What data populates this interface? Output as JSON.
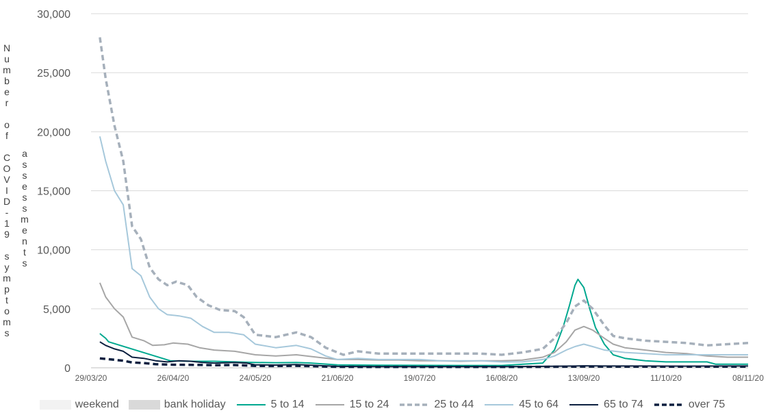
{
  "chart_data": {
    "type": "line",
    "title": "",
    "ylabel_outer": "Number of COVID-19 symptoms",
    "ylabel_inner": "assessments",
    "ylim": [
      0,
      30000
    ],
    "y_ticks": [
      "0",
      "5,000",
      "10,000",
      "15,000",
      "20,000",
      "25,000",
      "30,000"
    ],
    "y_tick_values": [
      0,
      5000,
      10000,
      15000,
      20000,
      25000,
      30000
    ],
    "x_tick_labels": [
      "29/03/20",
      "26/04/20",
      "24/05/20",
      "21/06/20",
      "19/07/20",
      "16/08/20",
      "13/09/20",
      "11/10/20",
      "08/11/20"
    ],
    "x_range": [
      "29/03/20",
      "08/11/20"
    ],
    "grid": "horizontal",
    "legend_position": "bottom",
    "shaded_categories": [
      {
        "name": "weekend",
        "color": "#f2f2f2"
      },
      {
        "name": "bank holiday",
        "color": "#d9d9d9"
      }
    ],
    "series": [
      {
        "name": "5 to 14",
        "color": "#00a88f",
        "dash": "solid",
        "width": 2,
        "points": [
          [
            "01/04/20",
            2900
          ],
          [
            "02/04/20",
            2700
          ],
          [
            "03/04/20",
            2500
          ],
          [
            "04/04/20",
            2200
          ],
          [
            "25/04/20",
            600
          ],
          [
            "03/05/20",
            550
          ],
          [
            "10/05/20",
            550
          ],
          [
            "17/05/20",
            500
          ],
          [
            "24/05/20",
            450
          ],
          [
            "31/05/20",
            430
          ],
          [
            "07/06/20",
            450
          ],
          [
            "12/06/20",
            400
          ],
          [
            "21/06/20",
            250
          ],
          [
            "05/07/20",
            220
          ],
          [
            "19/07/20",
            210
          ],
          [
            "02/08/20",
            200
          ],
          [
            "16/08/20",
            200
          ],
          [
            "30/08/20",
            400
          ],
          [
            "03/09/20",
            1500
          ],
          [
            "06/09/20",
            3500
          ],
          [
            "08/09/20",
            5200
          ],
          [
            "10/09/20",
            7000
          ],
          [
            "11/09/20",
            7500
          ],
          [
            "13/09/20",
            6800
          ],
          [
            "15/09/20",
            5000
          ],
          [
            "17/09/20",
            3400
          ],
          [
            "20/09/20",
            2000
          ],
          [
            "23/09/20",
            1100
          ],
          [
            "27/09/20",
            800
          ],
          [
            "04/10/20",
            600
          ],
          [
            "11/10/20",
            500
          ],
          [
            "18/10/20",
            500
          ],
          [
            "25/10/20",
            500
          ],
          [
            "28/10/20",
            300
          ],
          [
            "08/11/20",
            300
          ]
        ]
      },
      {
        "name": "15 to 24",
        "color": "#a6a6a6",
        "dash": "solid",
        "width": 2,
        "points": [
          [
            "01/04/20",
            7200
          ],
          [
            "03/04/20",
            6000
          ],
          [
            "06/04/20",
            5000
          ],
          [
            "09/04/20",
            4300
          ],
          [
            "12/04/20",
            2600
          ],
          [
            "16/04/20",
            2300
          ],
          [
            "19/04/20",
            1900
          ],
          [
            "23/04/20",
            1950
          ],
          [
            "26/04/20",
            2100
          ],
          [
            "01/05/20",
            2000
          ],
          [
            "05/05/20",
            1700
          ],
          [
            "10/05/20",
            1500
          ],
          [
            "17/05/20",
            1400
          ],
          [
            "24/05/20",
            1100
          ],
          [
            "31/05/20",
            1000
          ],
          [
            "07/06/20",
            1100
          ],
          [
            "14/06/20",
            900
          ],
          [
            "21/06/20",
            700
          ],
          [
            "28/06/20",
            700
          ],
          [
            "05/07/20",
            650
          ],
          [
            "12/07/20",
            650
          ],
          [
            "19/07/20",
            600
          ],
          [
            "26/07/20",
            600
          ],
          [
            "02/08/20",
            550
          ],
          [
            "09/08/20",
            600
          ],
          [
            "16/08/20",
            600
          ],
          [
            "23/08/20",
            650
          ],
          [
            "30/08/20",
            900
          ],
          [
            "03/09/20",
            1300
          ],
          [
            "07/09/20",
            2200
          ],
          [
            "10/09/20",
            3200
          ],
          [
            "13/09/20",
            3500
          ],
          [
            "16/09/20",
            3200
          ],
          [
            "20/09/20",
            2500
          ],
          [
            "23/09/20",
            2000
          ],
          [
            "27/09/20",
            1700
          ],
          [
            "04/10/20",
            1500
          ],
          [
            "11/10/20",
            1300
          ],
          [
            "18/10/20",
            1200
          ],
          [
            "25/10/20",
            1000
          ],
          [
            "01/11/20",
            900
          ],
          [
            "08/11/20",
            900
          ]
        ]
      },
      {
        "name": "25 to 44",
        "color": "#a6b0bb",
        "dash": "dashed",
        "width": 3.5,
        "points": [
          [
            "01/04/20",
            28000
          ],
          [
            "03/04/20",
            24500
          ],
          [
            "06/04/20",
            20500
          ],
          [
            "09/04/20",
            17500
          ],
          [
            "12/04/20",
            12000
          ],
          [
            "15/04/20",
            10900
          ],
          [
            "18/04/20",
            8500
          ],
          [
            "21/04/20",
            7500
          ],
          [
            "24/04/20",
            7000
          ],
          [
            "27/04/20",
            7300
          ],
          [
            "01/05/20",
            7000
          ],
          [
            "04/05/20",
            6000
          ],
          [
            "08/05/20",
            5300
          ],
          [
            "12/05/20",
            4900
          ],
          [
            "17/05/20",
            4800
          ],
          [
            "20/05/20",
            4300
          ],
          [
            "24/05/20",
            2800
          ],
          [
            "31/05/20",
            2600
          ],
          [
            "07/06/20",
            3000
          ],
          [
            "12/06/20",
            2600
          ],
          [
            "17/06/20",
            1700
          ],
          [
            "23/06/20",
            1100
          ],
          [
            "28/06/20",
            1400
          ],
          [
            "05/07/20",
            1200
          ],
          [
            "12/07/20",
            1200
          ],
          [
            "19/07/20",
            1200
          ],
          [
            "26/07/20",
            1200
          ],
          [
            "02/08/20",
            1200
          ],
          [
            "09/08/20",
            1200
          ],
          [
            "16/08/20",
            1100
          ],
          [
            "23/08/20",
            1300
          ],
          [
            "30/08/20",
            1600
          ],
          [
            "03/09/20",
            2500
          ],
          [
            "07/09/20",
            3800
          ],
          [
            "10/09/20",
            5200
          ],
          [
            "13/09/20",
            5700
          ],
          [
            "16/09/20",
            5000
          ],
          [
            "20/09/20",
            3600
          ],
          [
            "23/09/20",
            2700
          ],
          [
            "27/09/20",
            2500
          ],
          [
            "04/10/20",
            2300
          ],
          [
            "11/10/20",
            2200
          ],
          [
            "18/10/20",
            2100
          ],
          [
            "25/10/20",
            1900
          ],
          [
            "01/11/20",
            2000
          ],
          [
            "08/11/20",
            2100
          ]
        ]
      },
      {
        "name": "45 to 64",
        "color": "#a6c8db",
        "dash": "solid",
        "width": 2,
        "points": [
          [
            "01/04/20",
            19600
          ],
          [
            "03/04/20",
            17500
          ],
          [
            "06/04/20",
            15000
          ],
          [
            "09/04/20",
            13800
          ],
          [
            "12/04/20",
            8400
          ],
          [
            "15/04/20",
            7800
          ],
          [
            "18/04/20",
            6000
          ],
          [
            "21/04/20",
            5000
          ],
          [
            "24/04/20",
            4500
          ],
          [
            "28/04/20",
            4400
          ],
          [
            "02/05/20",
            4200
          ],
          [
            "06/05/20",
            3500
          ],
          [
            "10/05/20",
            3000
          ],
          [
            "15/05/20",
            3000
          ],
          [
            "20/05/20",
            2800
          ],
          [
            "24/05/20",
            2000
          ],
          [
            "31/05/20",
            1700
          ],
          [
            "07/06/20",
            1900
          ],
          [
            "12/06/20",
            1600
          ],
          [
            "17/06/20",
            1000
          ],
          [
            "21/06/20",
            700
          ],
          [
            "28/06/20",
            800
          ],
          [
            "05/07/20",
            700
          ],
          [
            "12/07/20",
            700
          ],
          [
            "19/07/20",
            700
          ],
          [
            "26/07/20",
            600
          ],
          [
            "02/08/20",
            600
          ],
          [
            "09/08/20",
            600
          ],
          [
            "16/08/20",
            500
          ],
          [
            "23/08/20",
            500
          ],
          [
            "30/08/20",
            700
          ],
          [
            "03/09/20",
            1000
          ],
          [
            "07/09/20",
            1500
          ],
          [
            "10/09/20",
            1800
          ],
          [
            "13/09/20",
            2000
          ],
          [
            "16/09/20",
            1800
          ],
          [
            "20/09/20",
            1500
          ],
          [
            "27/09/20",
            1300
          ],
          [
            "04/10/20",
            1200
          ],
          [
            "11/10/20",
            1100
          ],
          [
            "18/10/20",
            1100
          ],
          [
            "25/10/20",
            1100
          ],
          [
            "01/11/20",
            1100
          ],
          [
            "08/11/20",
            1100
          ]
        ]
      },
      {
        "name": "65 to 74",
        "color": "#0b1f3f",
        "dash": "solid",
        "width": 2,
        "points": [
          [
            "01/04/20",
            2200
          ],
          [
            "03/04/20",
            1900
          ],
          [
            "06/04/20",
            1600
          ],
          [
            "09/04/20",
            1400
          ],
          [
            "12/04/20",
            900
          ],
          [
            "16/04/20",
            800
          ],
          [
            "20/04/20",
            600
          ],
          [
            "24/04/20",
            500
          ],
          [
            "28/04/20",
            600
          ],
          [
            "02/05/20",
            550
          ],
          [
            "06/05/20",
            450
          ],
          [
            "10/05/20",
            400
          ],
          [
            "17/05/20",
            450
          ],
          [
            "21/05/20",
            400
          ],
          [
            "24/05/20",
            250
          ],
          [
            "31/05/20",
            230
          ],
          [
            "07/06/20",
            280
          ],
          [
            "14/06/20",
            200
          ],
          [
            "21/06/20",
            120
          ],
          [
            "05/07/20",
            100
          ],
          [
            "19/07/20",
            100
          ],
          [
            "02/08/20",
            100
          ],
          [
            "16/08/20",
            100
          ],
          [
            "30/08/20",
            120
          ],
          [
            "10/09/20",
            150
          ],
          [
            "13/09/20",
            170
          ],
          [
            "20/09/20",
            150
          ],
          [
            "04/10/20",
            150
          ],
          [
            "18/10/20",
            140
          ],
          [
            "01/11/20",
            150
          ],
          [
            "08/11/20",
            150
          ]
        ]
      },
      {
        "name": "over 75",
        "color": "#0b1f3f",
        "dash": "dashed",
        "width": 3.5,
        "points": [
          [
            "01/04/20",
            800
          ],
          [
            "05/04/20",
            700
          ],
          [
            "09/04/20",
            600
          ],
          [
            "12/04/20",
            450
          ],
          [
            "16/04/20",
            400
          ],
          [
            "20/04/20",
            300
          ],
          [
            "26/04/20",
            260
          ],
          [
            "03/05/20",
            250
          ],
          [
            "10/05/20",
            220
          ],
          [
            "17/05/20",
            230
          ],
          [
            "24/05/20",
            160
          ],
          [
            "31/05/20",
            150
          ],
          [
            "07/06/20",
            170
          ],
          [
            "14/06/20",
            130
          ],
          [
            "21/06/20",
            80
          ],
          [
            "05/07/20",
            70
          ],
          [
            "19/07/20",
            70
          ],
          [
            "02/08/20",
            70
          ],
          [
            "16/08/20",
            70
          ],
          [
            "30/08/20",
            80
          ],
          [
            "13/09/20",
            110
          ],
          [
            "27/09/20",
            100
          ],
          [
            "11/10/20",
            100
          ],
          [
            "25/10/20",
            100
          ],
          [
            "08/11/20",
            100
          ]
        ]
      }
    ]
  },
  "legend": {
    "entries": [
      {
        "label": "weekend",
        "kind": "box",
        "color": "#f2f2f2"
      },
      {
        "label": "bank holiday",
        "kind": "box",
        "color": "#d9d9d9"
      },
      {
        "label": "5 to 14",
        "kind": "line",
        "color": "#00a88f",
        "dash": "solid"
      },
      {
        "label": "15 to 24",
        "kind": "line",
        "color": "#a6a6a6",
        "dash": "solid"
      },
      {
        "label": "25 to 44",
        "kind": "line",
        "color": "#a6b0bb",
        "dash": "dashed"
      },
      {
        "label": "45 to 64",
        "kind": "line",
        "color": "#a6c8db",
        "dash": "solid"
      },
      {
        "label": "65 to 74",
        "kind": "line",
        "color": "#0b1f3f",
        "dash": "solid"
      },
      {
        "label": "over 75",
        "kind": "line",
        "color": "#0b1f3f",
        "dash": "dashed"
      }
    ]
  }
}
